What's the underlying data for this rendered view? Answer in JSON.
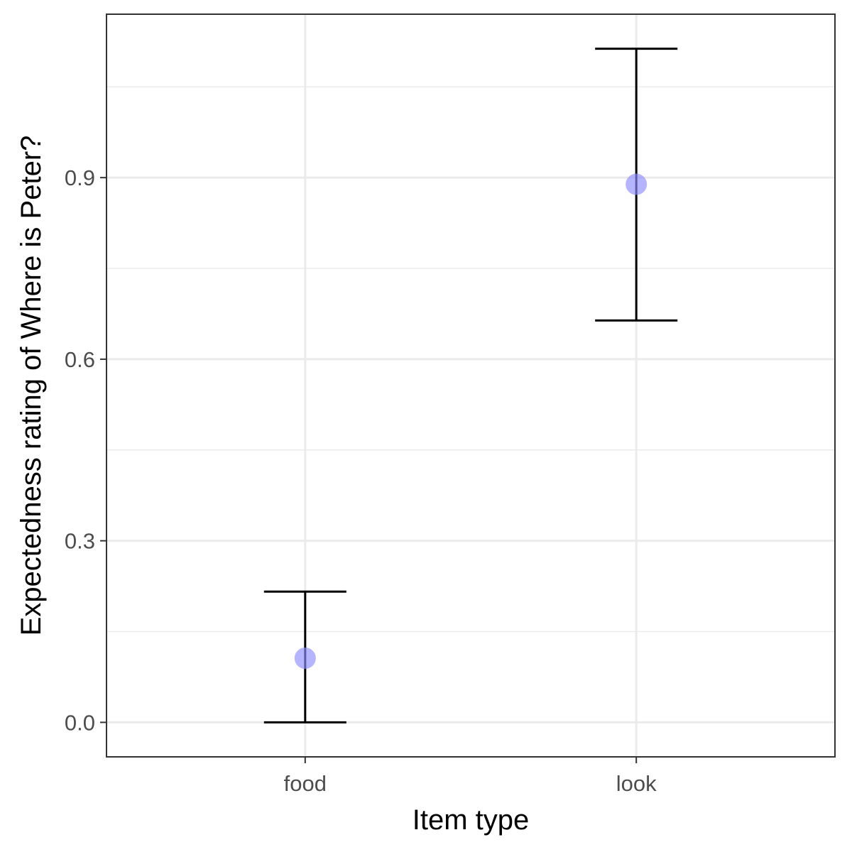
{
  "chart_data": {
    "type": "scatter",
    "title": "",
    "xlabel": "Item type",
    "ylabel": "Expectedness rating of Where is Peter?",
    "categories": [
      "food",
      "look"
    ],
    "series": [
      {
        "values": [
          0.106,
          0.889
        ],
        "error_low": [
          0.0,
          0.664
        ],
        "error_high": [
          0.216,
          1.113
        ]
      }
    ],
    "ylim": [
      -0.057,
      1.17
    ],
    "yticks": [
      0.0,
      0.3,
      0.6,
      0.9
    ],
    "ytick_labels": [
      "0.0",
      "0.3",
      "0.6",
      "0.9"
    ],
    "grid": true,
    "legend": "none",
    "colors": {
      "point": "#8c8cff",
      "errorbar": "#000000",
      "grid": "#ebebeb",
      "panel_border": "#333333"
    }
  }
}
